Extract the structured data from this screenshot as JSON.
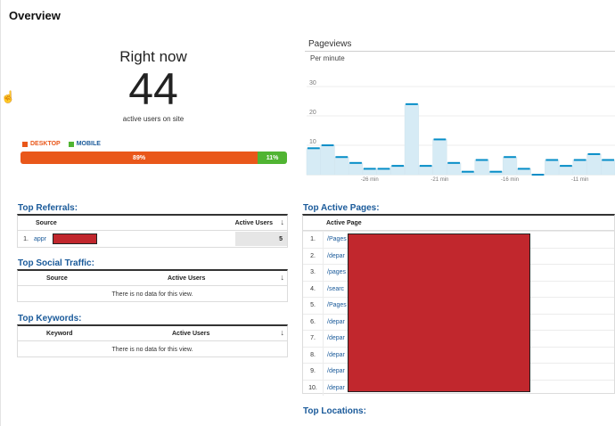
{
  "page": {
    "title": "Overview"
  },
  "cursor": {
    "icon": "hand-pointer-icon",
    "glyph": "☝"
  },
  "right_now": {
    "title": "Right now",
    "count": "44",
    "subtitle": "active users on site",
    "legend": [
      {
        "label": "DESKTOP",
        "color": "#e9571a"
      },
      {
        "label": "MOBILE",
        "color": "#50b432"
      }
    ],
    "split": [
      {
        "label": "89%",
        "fraction": 0.89,
        "color": "#e9571a"
      },
      {
        "label": "11%",
        "fraction": 0.11,
        "color": "#50b432"
      }
    ]
  },
  "pageviews": {
    "title": "Pageviews",
    "subtitle": "Per minute"
  },
  "chart_data": {
    "type": "bar",
    "ylim": [
      0,
      37
    ],
    "yticks": [
      "10",
      "20",
      "30"
    ],
    "ytick_values": [
      10,
      20,
      30
    ],
    "xtick_labels": [
      {
        "label": "-26 min",
        "at": 4.5
      },
      {
        "label": "-21 min",
        "at": 9.5
      },
      {
        "label": "-16 min",
        "at": 14.5
      },
      {
        "label": "-11 min",
        "at": 19.5
      }
    ],
    "values": [
      9,
      10,
      6,
      4,
      2,
      2,
      3,
      24,
      3,
      12,
      4,
      1,
      5,
      1,
      6,
      2,
      0,
      5,
      3,
      5,
      7,
      5
    ],
    "colors": {
      "fill": "#d6ebf5",
      "stroke": "#d0e4ee",
      "line": "#058dc7"
    }
  },
  "top_referrals": {
    "title": "Top Referrals:",
    "headers": {
      "source": "Source",
      "active_users": "Active Users"
    },
    "rows": [
      {
        "rank": "1.",
        "source": "appr",
        "users": "5"
      }
    ]
  },
  "top_social": {
    "title": "Top Social Traffic:",
    "headers": {
      "source": "Source",
      "active_users": "Active Users"
    },
    "empty": "There is no data for this view."
  },
  "top_keywords": {
    "title": "Top Keywords:",
    "headers": {
      "keyword": "Keyword",
      "active_users": "Active Users"
    },
    "empty": "There is no data for this view."
  },
  "top_pages": {
    "title": "Top Active Pages:",
    "header": "Active Page",
    "rows": [
      {
        "rank": "1.",
        "path": "/Pages"
      },
      {
        "rank": "2.",
        "path": "/depar"
      },
      {
        "rank": "3.",
        "path": "/pages"
      },
      {
        "rank": "4.",
        "path": "/searc"
      },
      {
        "rank": "5.",
        "path": "/Pages"
      },
      {
        "rank": "6.",
        "path": "/depar"
      },
      {
        "rank": "7.",
        "path": "/depar"
      },
      {
        "rank": "8.",
        "path": "/depar"
      },
      {
        "rank": "9.",
        "path": "/depar"
      },
      {
        "rank": "10.",
        "path": "/depar"
      }
    ]
  },
  "top_locations": {
    "title": "Top Locations:"
  },
  "redaction_color": "#c1272d"
}
